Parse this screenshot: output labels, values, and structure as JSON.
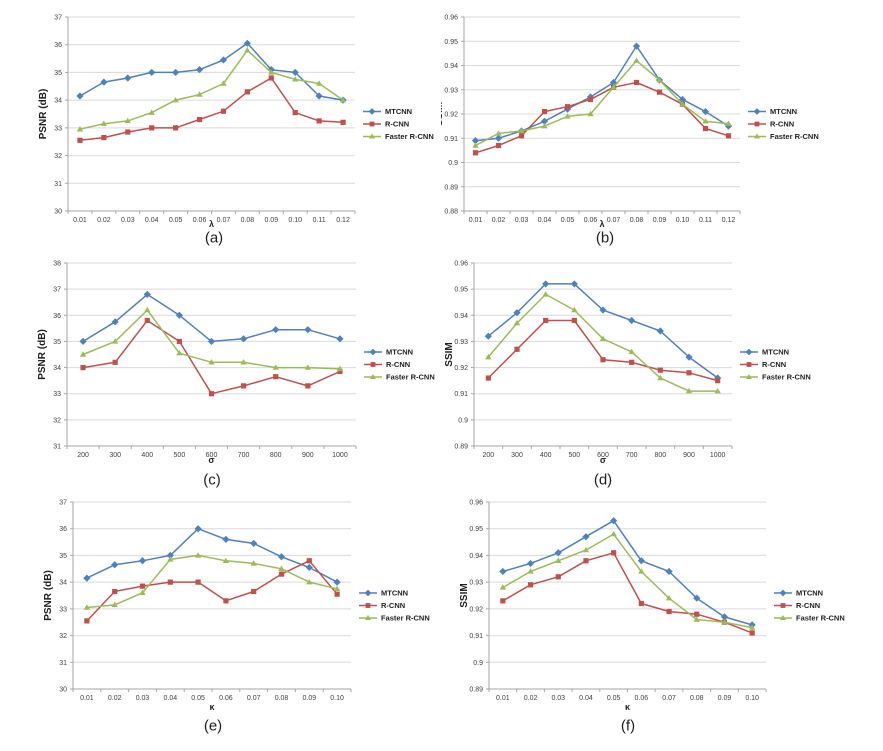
{
  "figure": {
    "background": "#ffffff",
    "grid_color": "#d9d9d9",
    "axis_color": "#a6a6a6",
    "tick_label_color": "#404040",
    "text_color": "#1f1f1f"
  },
  "legend": {
    "position": "right",
    "items": [
      {
        "label": "MTCNN",
        "color": "#4F81BD",
        "marker": "diamond-marker-icon"
      },
      {
        "label": "R-CNN",
        "color": "#C0504D",
        "marker": "square-marker-icon"
      },
      {
        "label": "Faster R-CNN",
        "color": "#9BBB59",
        "marker": "triangle-marker-icon"
      }
    ]
  },
  "chart_data": [
    {
      "id": "a",
      "caption": "(a)",
      "type": "line",
      "xlabel": "λ",
      "ylabel": "PSNR (dB)",
      "x_categories": [
        "0.01",
        "0.02",
        "0.03",
        "0.04",
        "0.05",
        "0.06",
        "0.07",
        "0.08",
        "0.09",
        "0.10",
        "0.11",
        "0.12"
      ],
      "ylim": [
        30,
        37
      ],
      "ytick_step": 1,
      "grid": "horizontal",
      "legend_position": "right",
      "series": [
        {
          "name": "MTCNN",
          "color": "#4F81BD",
          "marker": "diamond",
          "values": [
            34.15,
            34.65,
            34.8,
            35.0,
            35.0,
            35.1,
            35.45,
            36.05,
            35.1,
            35.0,
            34.15,
            34.0
          ]
        },
        {
          "name": "R-CNN",
          "color": "#C0504D",
          "marker": "square",
          "values": [
            32.55,
            32.65,
            32.85,
            33.0,
            33.0,
            33.3,
            33.6,
            34.3,
            34.8,
            33.55,
            33.25,
            33.2
          ]
        },
        {
          "name": "Faster R-CNN",
          "color": "#9BBB59",
          "marker": "triangle",
          "values": [
            32.95,
            33.15,
            33.25,
            33.55,
            34.0,
            34.2,
            34.6,
            35.8,
            35.0,
            34.75,
            34.6,
            34.0
          ]
        }
      ]
    },
    {
      "id": "b",
      "caption": "(b)",
      "type": "line",
      "xlabel": "λ",
      "ylabel": "SSIM",
      "x_categories": [
        "0.01",
        "0.02",
        "0.03",
        "0.04",
        "0.05",
        "0.06",
        "0.07",
        "0.08",
        "0.09",
        "0.10",
        "0.11",
        "0.12"
      ],
      "ylim": [
        0.88,
        0.96
      ],
      "ytick_step": 0.01,
      "grid": "horizontal",
      "legend_position": "right",
      "series": [
        {
          "name": "MTCNN",
          "color": "#4F81BD",
          "marker": "diamond",
          "values": [
            0.909,
            0.91,
            0.913,
            0.917,
            0.922,
            0.927,
            0.933,
            0.948,
            0.934,
            0.926,
            0.921,
            0.915
          ]
        },
        {
          "name": "R-CNN",
          "color": "#C0504D",
          "marker": "square",
          "values": [
            0.904,
            0.907,
            0.911,
            0.921,
            0.923,
            0.926,
            0.931,
            0.933,
            0.929,
            0.924,
            0.914,
            0.911
          ]
        },
        {
          "name": "Faster R-CNN",
          "color": "#9BBB59",
          "marker": "triangle",
          "values": [
            0.907,
            0.912,
            0.913,
            0.915,
            0.919,
            0.92,
            0.931,
            0.942,
            0.934,
            0.924,
            0.917,
            0.916
          ]
        }
      ]
    },
    {
      "id": "c",
      "caption": "(c)",
      "type": "line",
      "xlabel": "σ",
      "ylabel": "PSNR (dB)",
      "x_categories": [
        "200",
        "300",
        "400",
        "500",
        "600",
        "700",
        "800",
        "900",
        "1000"
      ],
      "ylim": [
        31,
        38
      ],
      "ytick_step": 1,
      "grid": "horizontal",
      "legend_position": "right",
      "series": [
        {
          "name": "MTCNN",
          "color": "#4F81BD",
          "marker": "diamond",
          "values": [
            35.0,
            35.75,
            36.8,
            36.0,
            35.0,
            35.1,
            35.45,
            35.45,
            35.1
          ]
        },
        {
          "name": "R-CNN",
          "color": "#C0504D",
          "marker": "square",
          "values": [
            34.0,
            34.2,
            35.8,
            35.0,
            33.0,
            33.3,
            33.65,
            33.3,
            33.85
          ]
        },
        {
          "name": "Faster R-CNN",
          "color": "#9BBB59",
          "marker": "triangle",
          "values": [
            34.5,
            35.0,
            36.2,
            34.55,
            34.2,
            34.2,
            34.0,
            34.0,
            33.95
          ]
        }
      ]
    },
    {
      "id": "d",
      "caption": "(d)",
      "type": "line",
      "xlabel": "σ",
      "ylabel": "SSIM",
      "x_categories": [
        "200",
        "300",
        "400",
        "500",
        "600",
        "700",
        "800",
        "900",
        "1000"
      ],
      "ylim": [
        0.89,
        0.96
      ],
      "ytick_step": 0.01,
      "grid": "horizontal",
      "legend_position": "right",
      "series": [
        {
          "name": "MTCNN",
          "color": "#4F81BD",
          "marker": "diamond",
          "values": [
            0.932,
            0.941,
            0.952,
            0.952,
            0.942,
            0.938,
            0.934,
            0.924,
            0.916
          ]
        },
        {
          "name": "R-CNN",
          "color": "#C0504D",
          "marker": "square",
          "values": [
            0.916,
            0.927,
            0.938,
            0.938,
            0.923,
            0.922,
            0.919,
            0.918,
            0.915
          ]
        },
        {
          "name": "Faster R-CNN",
          "color": "#9BBB59",
          "marker": "triangle",
          "values": [
            0.924,
            0.937,
            0.948,
            0.942,
            0.931,
            0.926,
            0.916,
            0.911,
            0.911
          ]
        }
      ]
    },
    {
      "id": "e",
      "caption": "(e)",
      "type": "line",
      "xlabel": "κ",
      "ylabel": "PSNR (dB)",
      "x_categories": [
        "0.01",
        "0.02",
        "0.03",
        "0.04",
        "0.05",
        "0.06",
        "0.07",
        "0.08",
        "0.09",
        "0.10"
      ],
      "ylim": [
        30,
        37
      ],
      "ytick_step": 1,
      "grid": "horizontal",
      "legend_position": "right",
      "series": [
        {
          "name": "MTCNN",
          "color": "#4F81BD",
          "marker": "diamond",
          "values": [
            34.15,
            34.65,
            34.8,
            35.0,
            36.0,
            35.6,
            35.45,
            34.95,
            34.55,
            34.0
          ]
        },
        {
          "name": "R-CNN",
          "color": "#C0504D",
          "marker": "square",
          "values": [
            32.55,
            33.65,
            33.85,
            34.0,
            34.0,
            33.3,
            33.65,
            34.3,
            34.8,
            33.55
          ]
        },
        {
          "name": "Faster R-CNN",
          "color": "#9BBB59",
          "marker": "triangle",
          "values": [
            33.05,
            33.15,
            33.6,
            34.85,
            35.0,
            34.8,
            34.7,
            34.5,
            34.0,
            33.75
          ]
        }
      ]
    },
    {
      "id": "f",
      "caption": "(f)",
      "type": "line",
      "xlabel": "κ",
      "ylabel": "SSIM",
      "x_categories": [
        "0.01",
        "0.02",
        "0.03",
        "0.04",
        "0.05",
        "0.06",
        "0.07",
        "0.08",
        "0.09",
        "0.10"
      ],
      "ylim": [
        0.89,
        0.96
      ],
      "ytick_step": 0.01,
      "grid": "horizontal",
      "legend_position": "right",
      "series": [
        {
          "name": "MTCNN",
          "color": "#4F81BD",
          "marker": "diamond",
          "values": [
            0.934,
            0.937,
            0.941,
            0.947,
            0.953,
            0.938,
            0.934,
            0.924,
            0.917,
            0.914
          ]
        },
        {
          "name": "R-CNN",
          "color": "#C0504D",
          "marker": "square",
          "values": [
            0.923,
            0.929,
            0.932,
            0.938,
            0.941,
            0.922,
            0.919,
            0.918,
            0.915,
            0.911
          ]
        },
        {
          "name": "Faster R-CNN",
          "color": "#9BBB59",
          "marker": "triangle",
          "values": [
            0.928,
            0.934,
            0.938,
            0.942,
            0.948,
            0.934,
            0.924,
            0.916,
            0.915,
            0.913
          ]
        }
      ]
    }
  ]
}
